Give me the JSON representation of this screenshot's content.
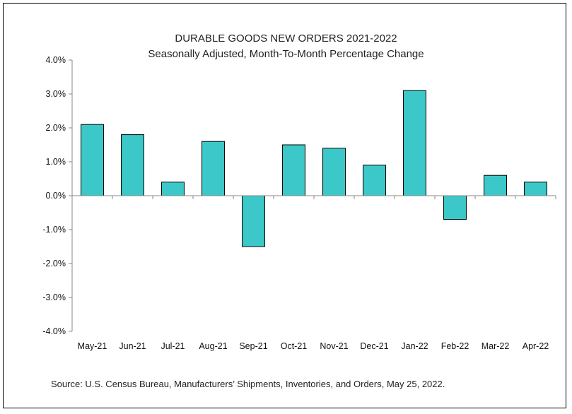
{
  "chart_data": {
    "type": "bar",
    "title": "DURABLE GOODS NEW ORDERS 2021-2022",
    "subtitle": "Seasonally Adjusted,  Month-To-Month Percentage Change",
    "categories": [
      "May-21",
      "Jun-21",
      "Jul-21",
      "Aug-21",
      "Sep-21",
      "Oct-21",
      "Nov-21",
      "Dec-21",
      "Jan-22",
      "Feb-22",
      "Mar-22",
      "Apr-22"
    ],
    "values": [
      2.1,
      1.8,
      0.4,
      1.6,
      -1.5,
      1.5,
      1.4,
      0.9,
      3.1,
      -0.7,
      0.6,
      0.4
    ],
    "ylim": [
      -4,
      4
    ],
    "yticks": [
      4,
      3,
      2,
      1,
      0,
      -1,
      -2,
      -3,
      -4
    ],
    "ytick_labels": [
      "4.0%",
      "3.0%",
      "2.0%",
      "1.0%",
      "0.0%",
      "-1.0%",
      "-2.0%",
      "-3.0%",
      "-4.0%"
    ],
    "xlabel": "",
    "ylabel": "",
    "grid": false,
    "bar_color": "#3cc8c8",
    "source": "Source: U.S. Census Bureau, Manufacturers’ Shipments, Inventories, and Orders, May 25, 2022."
  }
}
